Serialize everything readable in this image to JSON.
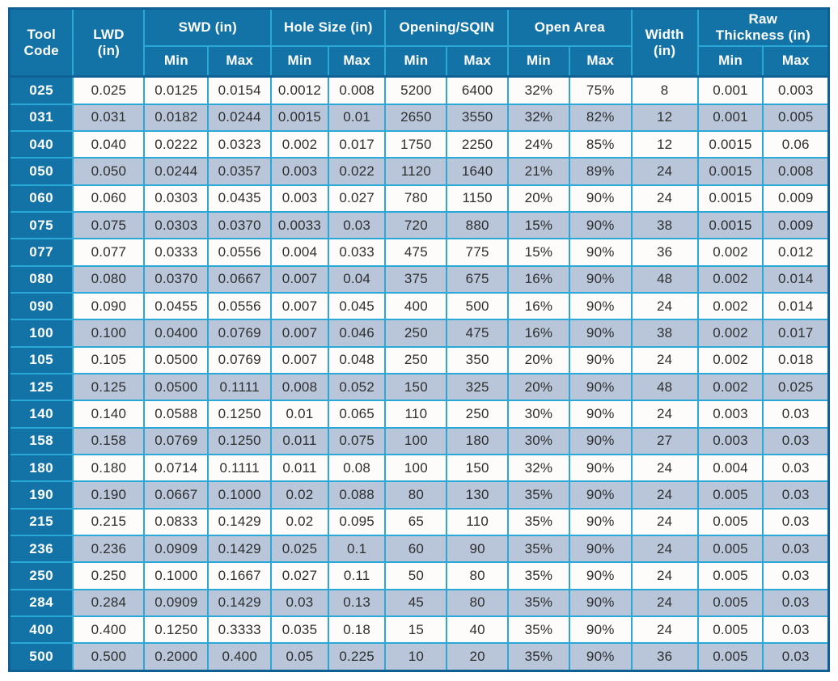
{
  "colors": {
    "header_bg": "#1373a7",
    "border": "#2aa8d8",
    "outer_border": "#0e6095",
    "alt_row_bg": "#b9c6d9",
    "row_bg": "#fdfcfa",
    "header_text": "#ffffff",
    "cell_text": "#2e2e2e",
    "page_bg": "#ffffff"
  },
  "table": {
    "header": {
      "tool_code": "Tool\nCode",
      "lwd": "LWD\n(in)",
      "swd": "SWD (in)",
      "hole_size": "Hole Size (in)",
      "opening": "Opening/SQIN",
      "open_area": "Open Area",
      "width": "Width\n(in)",
      "raw_thickness": "Raw\nThickness (in)",
      "min": "Min",
      "max": "Max"
    },
    "column_keys": [
      "tool_code",
      "lwd_in",
      "swd_min",
      "swd_max",
      "hole_size_min",
      "hole_size_max",
      "opening_sqin_min",
      "opening_sqin_max",
      "open_area_min",
      "open_area_max",
      "width_in",
      "raw_thickness_min",
      "raw_thickness_max"
    ],
    "rows": [
      [
        "025",
        "0.025",
        "0.0125",
        "0.0154",
        "0.0012",
        "0.008",
        "5200",
        "6400",
        "32%",
        "75%",
        "8",
        "0.001",
        "0.003"
      ],
      [
        "031",
        "0.031",
        "0.0182",
        "0.0244",
        "0.0015",
        "0.01",
        "2650",
        "3550",
        "32%",
        "82%",
        "12",
        "0.001",
        "0.005"
      ],
      [
        "040",
        "0.040",
        "0.0222",
        "0.0323",
        "0.002",
        "0.017",
        "1750",
        "2250",
        "24%",
        "85%",
        "12",
        "0.0015",
        "0.06"
      ],
      [
        "050",
        "0.050",
        "0.0244",
        "0.0357",
        "0.003",
        "0.022",
        "1120",
        "1640",
        "21%",
        "89%",
        "24",
        "0.0015",
        "0.008"
      ],
      [
        "060",
        "0.060",
        "0.0303",
        "0.0435",
        "0.003",
        "0.027",
        "780",
        "1150",
        "20%",
        "90%",
        "24",
        "0.0015",
        "0.009"
      ],
      [
        "075",
        "0.075",
        "0.0303",
        "0.0370",
        "0.0033",
        "0.03",
        "720",
        "880",
        "15%",
        "90%",
        "38",
        "0.0015",
        "0.009"
      ],
      [
        "077",
        "0.077",
        "0.0333",
        "0.0556",
        "0.004",
        "0.033",
        "475",
        "775",
        "15%",
        "90%",
        "36",
        "0.002",
        "0.012"
      ],
      [
        "080",
        "0.080",
        "0.0370",
        "0.0667",
        "0.007",
        "0.04",
        "375",
        "675",
        "16%",
        "90%",
        "48",
        "0.002",
        "0.014"
      ],
      [
        "090",
        "0.090",
        "0.0455",
        "0.0556",
        "0.007",
        "0.045",
        "400",
        "500",
        "16%",
        "90%",
        "24",
        "0.002",
        "0.014"
      ],
      [
        "100",
        "0.100",
        "0.0400",
        "0.0769",
        "0.007",
        "0.046",
        "250",
        "475",
        "16%",
        "90%",
        "38",
        "0.002",
        "0.017"
      ],
      [
        "105",
        "0.105",
        "0.0500",
        "0.0769",
        "0.007",
        "0.048",
        "250",
        "350",
        "20%",
        "90%",
        "24",
        "0.002",
        "0.018"
      ],
      [
        "125",
        "0.125",
        "0.0500",
        "0.1111",
        "0.008",
        "0.052",
        "150",
        "325",
        "20%",
        "90%",
        "48",
        "0.002",
        "0.025"
      ],
      [
        "140",
        "0.140",
        "0.0588",
        "0.1250",
        "0.01",
        "0.065",
        "110",
        "250",
        "30%",
        "90%",
        "24",
        "0.003",
        "0.03"
      ],
      [
        "158",
        "0.158",
        "0.0769",
        "0.1250",
        "0.011",
        "0.075",
        "100",
        "180",
        "30%",
        "90%",
        "27",
        "0.003",
        "0.03"
      ],
      [
        "180",
        "0.180",
        "0.0714",
        "0.1111",
        "0.011",
        "0.08",
        "100",
        "150",
        "32%",
        "90%",
        "24",
        "0.004",
        "0.03"
      ],
      [
        "190",
        "0.190",
        "0.0667",
        "0.1000",
        "0.02",
        "0.088",
        "80",
        "130",
        "35%",
        "90%",
        "24",
        "0.005",
        "0.03"
      ],
      [
        "215",
        "0.215",
        "0.0833",
        "0.1429",
        "0.02",
        "0.095",
        "65",
        "110",
        "35%",
        "90%",
        "24",
        "0.005",
        "0.03"
      ],
      [
        "236",
        "0.236",
        "0.0909",
        "0.1429",
        "0.025",
        "0.1",
        "60",
        "90",
        "35%",
        "90%",
        "24",
        "0.005",
        "0.03"
      ],
      [
        "250",
        "0.250",
        "0.1000",
        "0.1667",
        "0.027",
        "0.11",
        "50",
        "80",
        "35%",
        "90%",
        "24",
        "0.005",
        "0.03"
      ],
      [
        "284",
        "0.284",
        "0.0909",
        "0.1429",
        "0.03",
        "0.13",
        "45",
        "80",
        "35%",
        "90%",
        "24",
        "0.005",
        "0.03"
      ],
      [
        "400",
        "0.400",
        "0.1250",
        "0.3333",
        "0.035",
        "0.18",
        "15",
        "40",
        "35%",
        "90%",
        "24",
        "0.005",
        "0.03"
      ],
      [
        "500",
        "0.500",
        "0.2000",
        "0.400",
        "0.05",
        "0.225",
        "10",
        "20",
        "35%",
        "90%",
        "36",
        "0.005",
        "0.03"
      ]
    ]
  }
}
